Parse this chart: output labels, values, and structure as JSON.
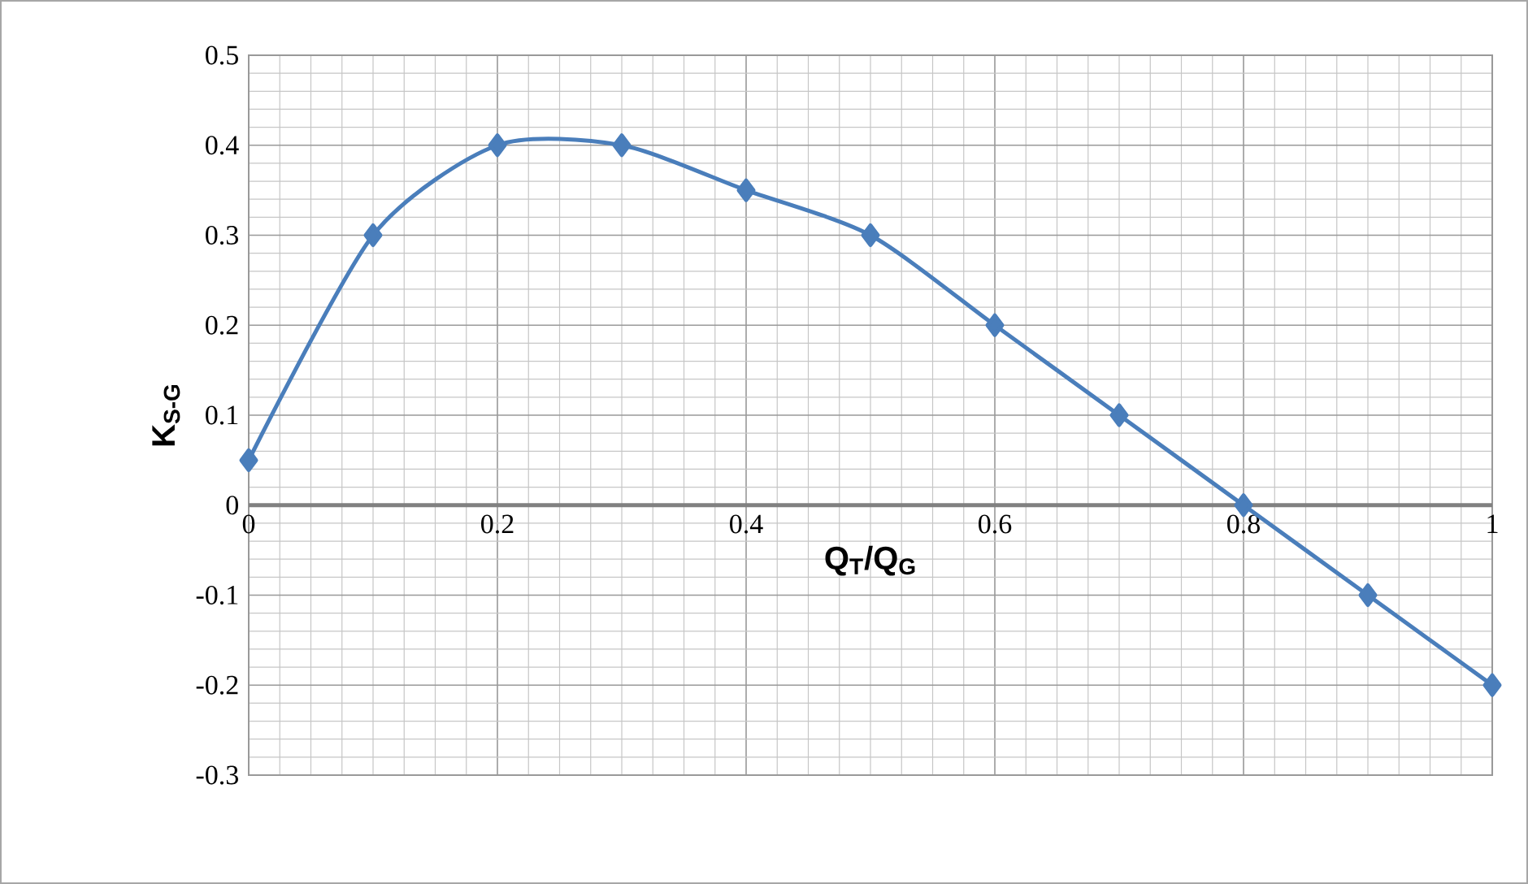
{
  "chart_data": {
    "type": "line",
    "xlabel": "Q$_{T}$/Q$_{G}$",
    "ylabel": "K$_{S-G}$",
    "x": [
      0,
      0.1,
      0.2,
      0.3,
      0.4,
      0.5,
      0.6,
      0.7,
      0.8,
      0.9,
      1
    ],
    "series": [
      {
        "color": "#4a7ebb",
        "values": [
          0.05,
          0.3,
          0.4,
          0.4,
          0.35,
          0.3,
          0.2,
          0.1,
          0,
          -0.1,
          -0.2
        ]
      }
    ],
    "xlim": [
      0,
      1
    ],
    "ylim": [
      -0.3,
      0.5
    ],
    "xticks": [
      0,
      0.2,
      0.4,
      0.6,
      0.8,
      1
    ],
    "yticks": [
      -0.3,
      -0.2,
      -0.1,
      0,
      0.1,
      0.2,
      0.3,
      0.4,
      0.5
    ],
    "grid": true,
    "marker": "diamond",
    "line_style": "solid"
  }
}
